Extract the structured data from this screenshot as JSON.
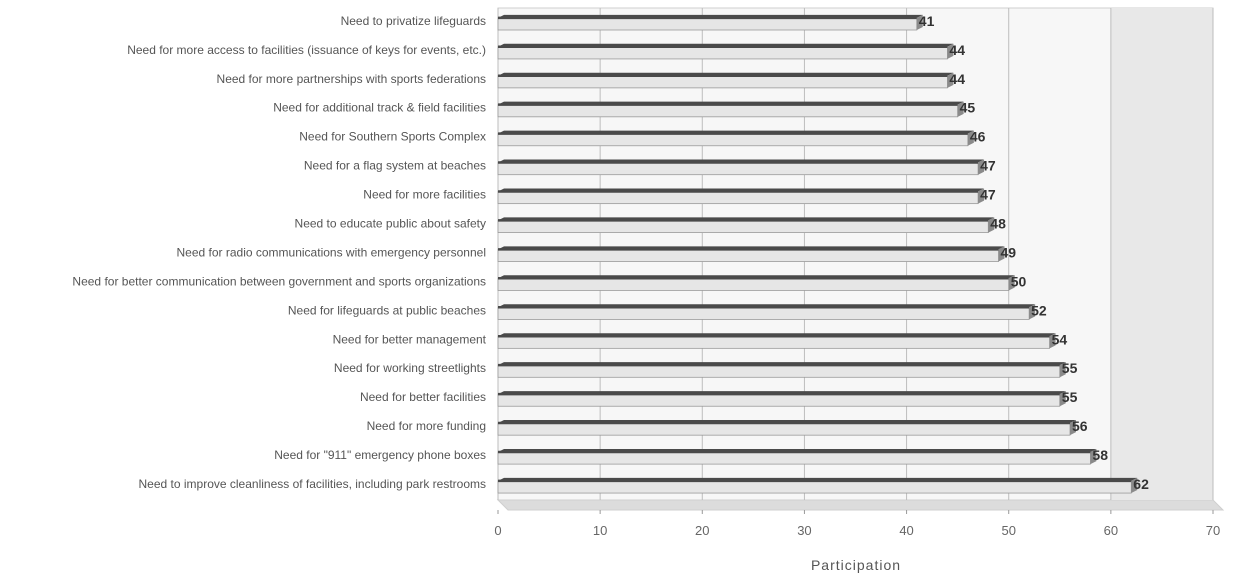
{
  "chart_data": {
    "type": "bar",
    "orientation": "horizontal",
    "title": "",
    "xlabel": "Participation",
    "ylabel": "",
    "xlim": [
      0,
      70
    ],
    "x_ticks": [
      "0",
      "10",
      "20",
      "30",
      "40",
      "50",
      "60",
      "70"
    ],
    "grid": true,
    "legend": "none",
    "categories": [
      "Need to privatize lifeguards",
      "Need for more access to facilities (issuance of keys for events, etc.)",
      "Need for more partnerships with sports federations",
      "Need for additional track & field facilities",
      "Need for Southern Sports Complex",
      "Need for a flag system at beaches",
      "Need for more facilities",
      "Need to educate public about safety",
      "Need for radio communications with emergency personnel",
      "Need for better communication between government and sports organizations",
      "Need for lifeguards at public beaches",
      "Need for better management",
      "Need for working streetlights",
      "Need for better facilities",
      "Need for more funding",
      "Need for \"911\" emergency phone boxes",
      "Need to improve cleanliness of facilities, including park restrooms"
    ],
    "values": [
      41,
      44,
      44,
      45,
      46,
      47,
      47,
      48,
      49,
      50,
      52,
      54,
      55,
      55,
      56,
      58,
      62
    ],
    "data_labels": [
      "41",
      "44",
      "44",
      "45",
      "46",
      "47",
      "47",
      "48",
      "49",
      "50",
      "52",
      "54",
      "55",
      "55",
      "56",
      "58",
      "62"
    ],
    "colors": {
      "bar_dark": "#4a4a4a",
      "bar_light": "#e6e6e6",
      "wall_light": "#f7f7f7",
      "wall_dark": "#e8e8e8",
      "grid": "#bdbdbd"
    }
  }
}
